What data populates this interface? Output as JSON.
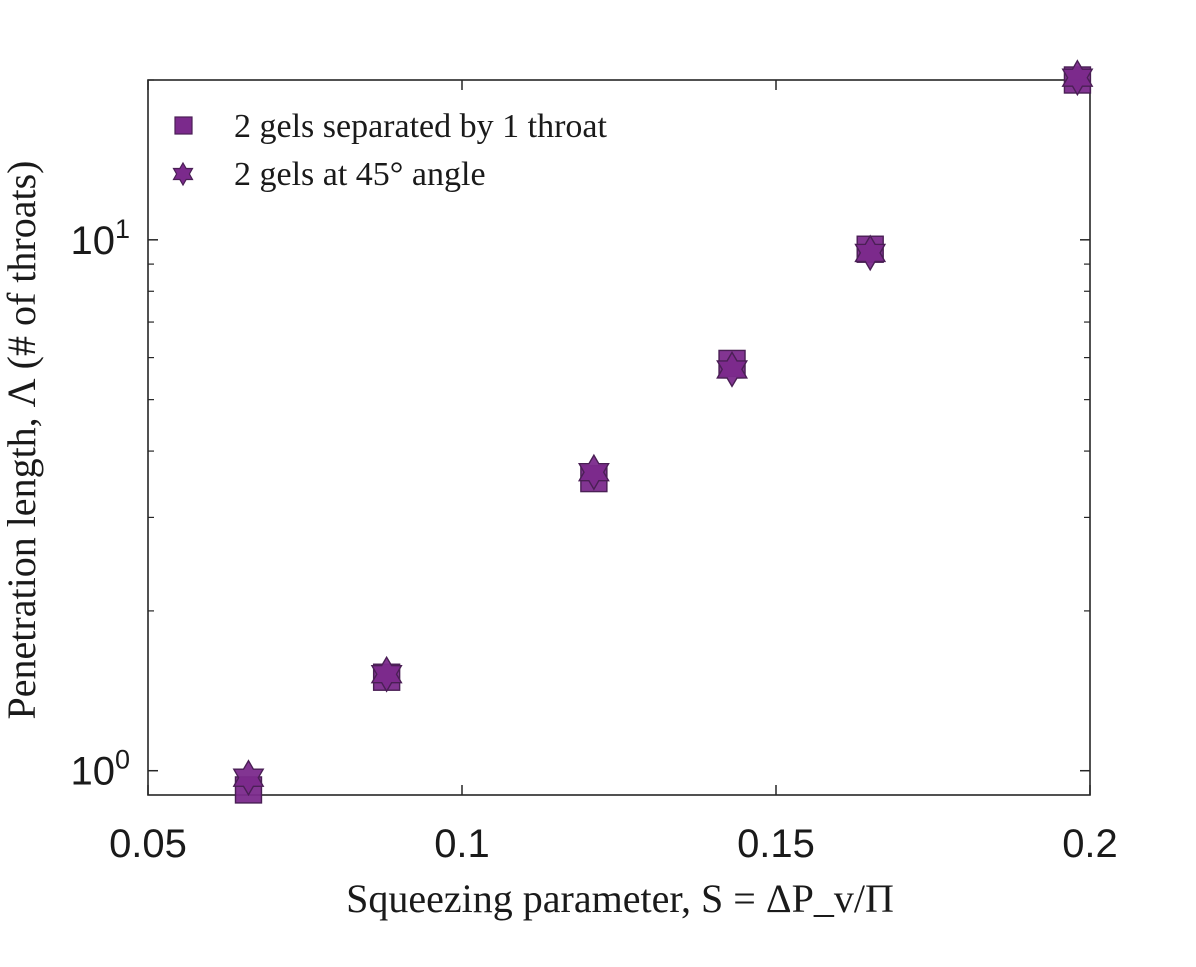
{
  "chart_data": {
    "type": "scatter",
    "title": "",
    "xlabel": "Squeezing parameter, S = ΔP_v/Π",
    "ylabel": "Penetration length, Λ (# of throats)",
    "xlim": [
      0.05,
      0.2
    ],
    "ylim": [
      0.9,
      20
    ],
    "yscale": "log",
    "grid": false,
    "legend_position": "top-left",
    "x_ticks": [
      0.05,
      0.1,
      0.15,
      0.2
    ],
    "x_tick_labels": [
      "0.05",
      "0.1",
      "0.15",
      "0.2"
    ],
    "y_ticks": [
      {
        "value": 1,
        "base": "10",
        "exp": "0"
      },
      {
        "value": 10,
        "base": "10",
        "exp": "1"
      }
    ],
    "color": "#7b2a8c",
    "series": [
      {
        "name": "2 gels separated by 1 throat",
        "marker": "square",
        "x": [
          0.066,
          0.088,
          0.121,
          0.143,
          0.165,
          0.198
        ],
        "y": [
          0.92,
          1.5,
          3.55,
          5.85,
          9.6,
          20.0
        ]
      },
      {
        "name": "2 gels at 45° angle",
        "marker": "hexagram",
        "x": [
          0.066,
          0.088,
          0.121,
          0.143,
          0.165,
          0.198
        ],
        "y": [
          0.97,
          1.52,
          3.65,
          5.7,
          9.45,
          20.2
        ]
      }
    ]
  }
}
